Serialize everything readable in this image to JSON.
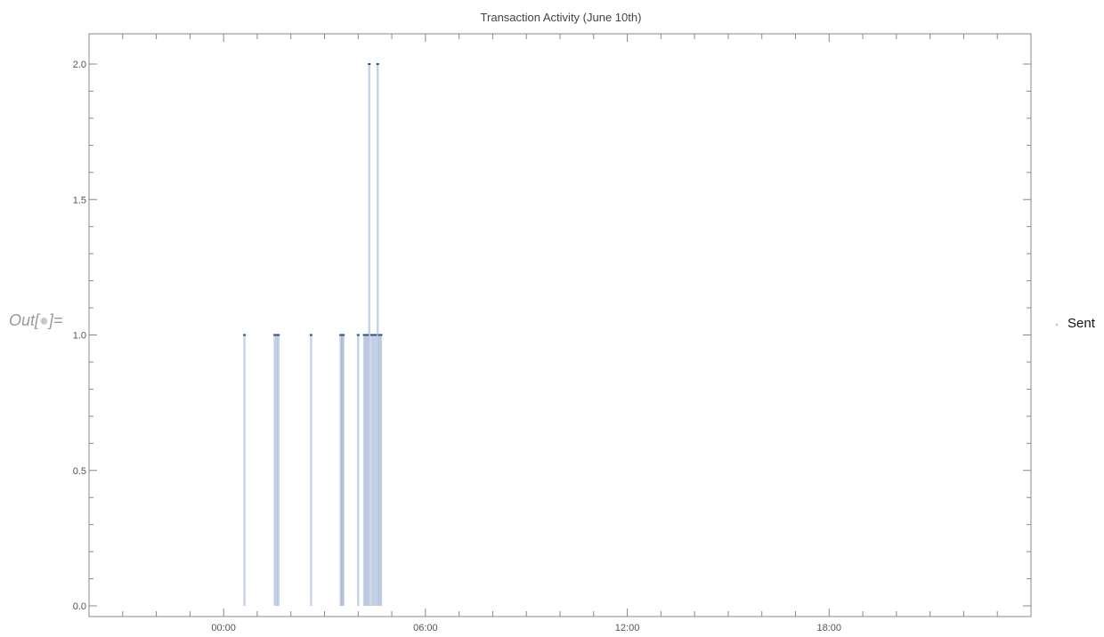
{
  "notebook": {
    "out_prefix": "Out[",
    "out_dot": "●",
    "out_suffix": "]="
  },
  "chart_data": {
    "type": "bar",
    "title": "Transaction Activity (June 10th)",
    "xlabel": "",
    "ylabel": "",
    "x_ticks": [
      "00:00",
      "06:00",
      "12:00",
      "18:00"
    ],
    "y_ticks": [
      "0.0",
      "0.5",
      "1.0",
      "1.5",
      "2.0"
    ],
    "xlim_hours": [
      -4,
      24
    ],
    "ylim": [
      0,
      2.1
    ],
    "grid": false,
    "legend": {
      "placement": "right",
      "entries": [
        "Sent"
      ]
    },
    "series": [
      {
        "name": "Sent",
        "color": "#5b7fb5",
        "points": [
          {
            "hour": 0.62,
            "value": 1
          },
          {
            "hour": 1.52,
            "value": 1
          },
          {
            "hour": 1.58,
            "value": 1
          },
          {
            "hour": 1.63,
            "value": 1
          },
          {
            "hour": 2.6,
            "value": 1
          },
          {
            "hour": 3.48,
            "value": 1
          },
          {
            "hour": 3.52,
            "value": 1
          },
          {
            "hour": 3.56,
            "value": 1
          },
          {
            "hour": 4.0,
            "value": 1
          },
          {
            "hour": 4.18,
            "value": 1
          },
          {
            "hour": 4.23,
            "value": 1
          },
          {
            "hour": 4.28,
            "value": 1
          },
          {
            "hour": 4.33,
            "value": 2
          },
          {
            "hour": 4.4,
            "value": 1
          },
          {
            "hour": 4.46,
            "value": 1
          },
          {
            "hour": 4.52,
            "value": 1
          },
          {
            "hour": 4.58,
            "value": 2
          },
          {
            "hour": 4.63,
            "value": 1
          },
          {
            "hour": 4.68,
            "value": 1
          }
        ]
      }
    ]
  }
}
